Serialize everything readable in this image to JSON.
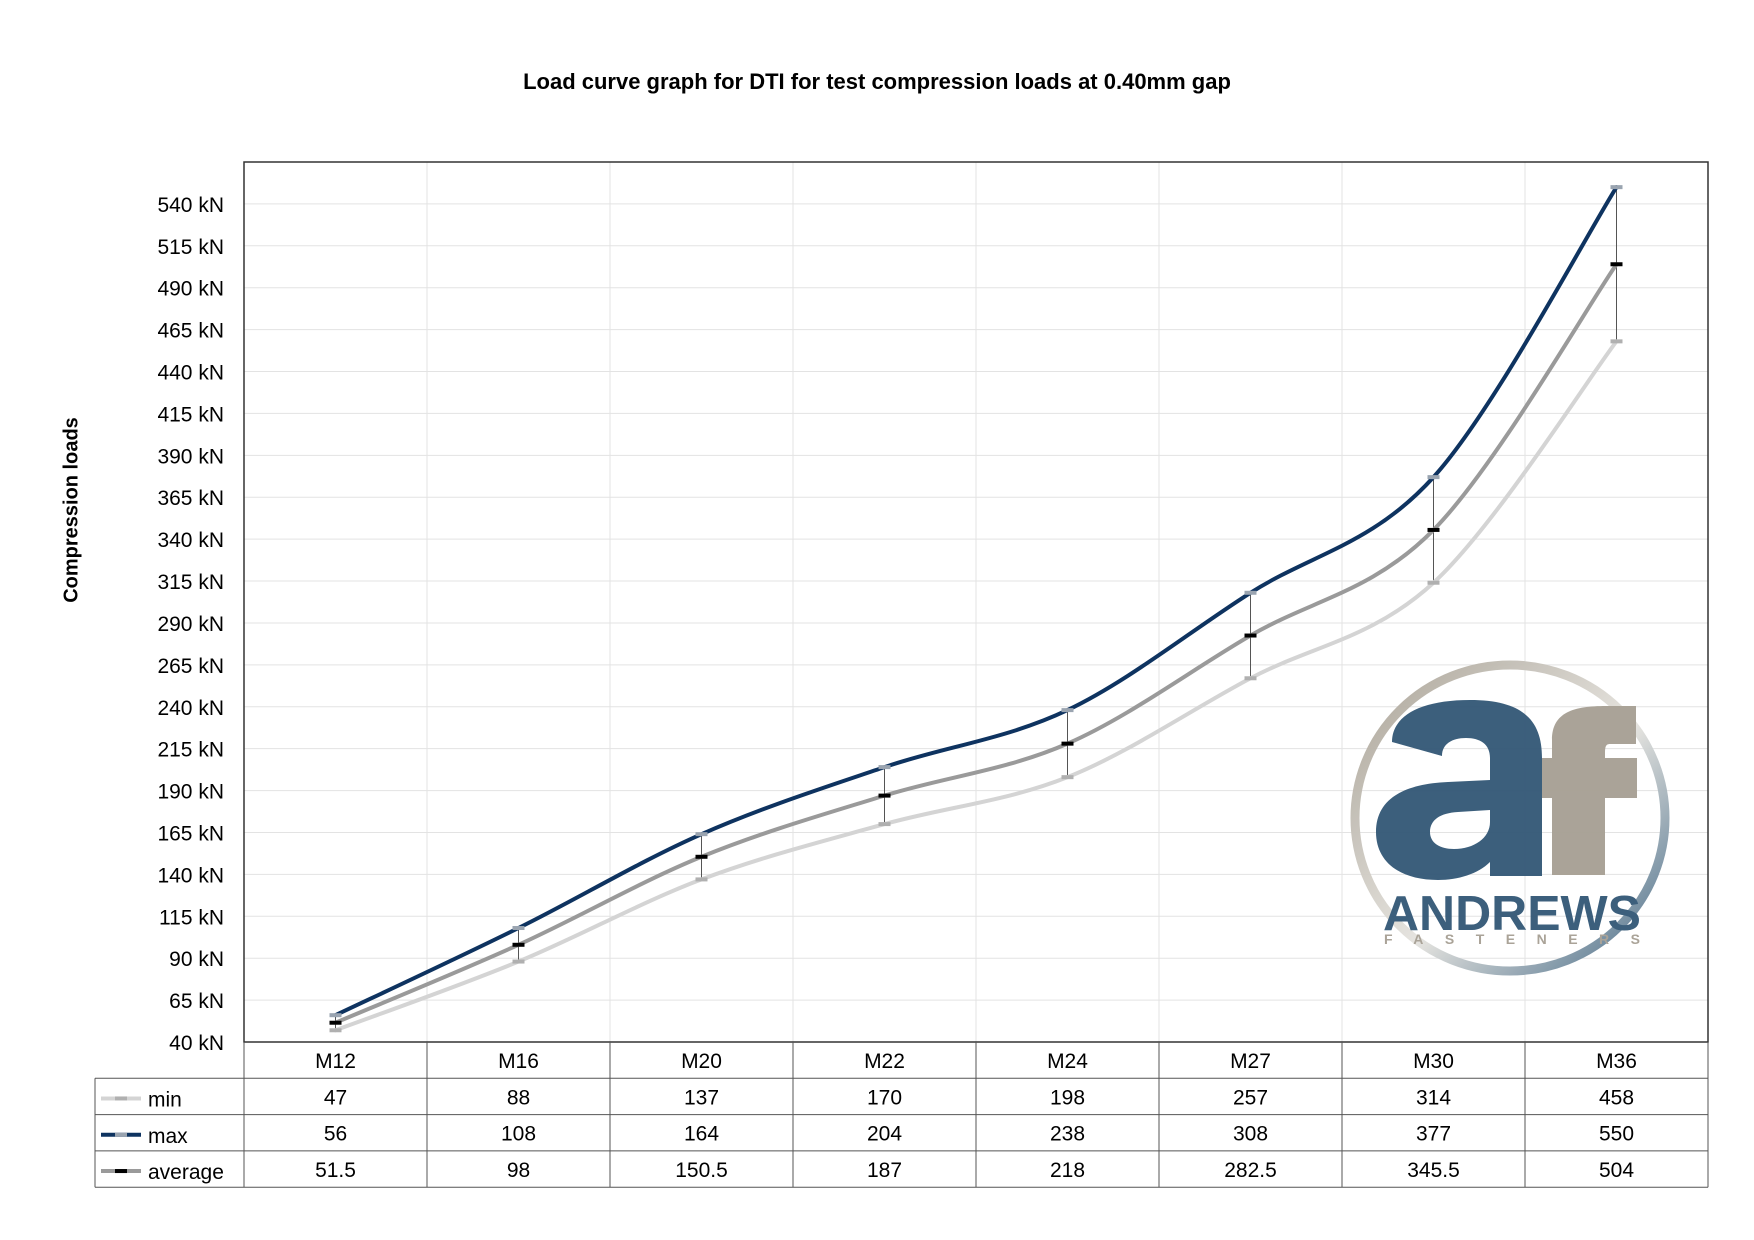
{
  "chart_data": {
    "type": "line",
    "title": "Load curve graph for DTI for test compression loads at 0.40mm gap",
    "xlabel": "",
    "ylabel": "Compression loads",
    "categories": [
      "M12",
      "M16",
      "M20",
      "M22",
      "M24",
      "M27",
      "M30",
      "M36"
    ],
    "series": [
      {
        "name": "min",
        "values": [
          47,
          88,
          137,
          170,
          198,
          257,
          314,
          458
        ],
        "color": "#d4d4d4"
      },
      {
        "name": "max",
        "values": [
          56,
          108,
          164,
          204,
          238,
          308,
          377,
          550
        ],
        "color": "#0e3360"
      },
      {
        "name": "average",
        "values": [
          51.5,
          98,
          150.5,
          187,
          218,
          282.5,
          345.5,
          504
        ],
        "color": "#9a9a9a"
      }
    ],
    "ylim": [
      40,
      565
    ],
    "yticks": [
      40,
      65,
      90,
      115,
      140,
      165,
      190,
      215,
      240,
      265,
      290,
      315,
      340,
      365,
      390,
      415,
      440,
      465,
      490,
      515,
      540
    ],
    "ytick_unit": "kN",
    "grid": true,
    "error_bars": "min to max, average marked",
    "legend": "data table below plot",
    "data_table": true
  },
  "logo": {
    "monogram": "af",
    "name": "ANDREWS",
    "subname": "FASTENERS",
    "colors": {
      "blue": "#365a78",
      "taupe": "#a8a195",
      "ring": "#c9c5bc"
    }
  }
}
